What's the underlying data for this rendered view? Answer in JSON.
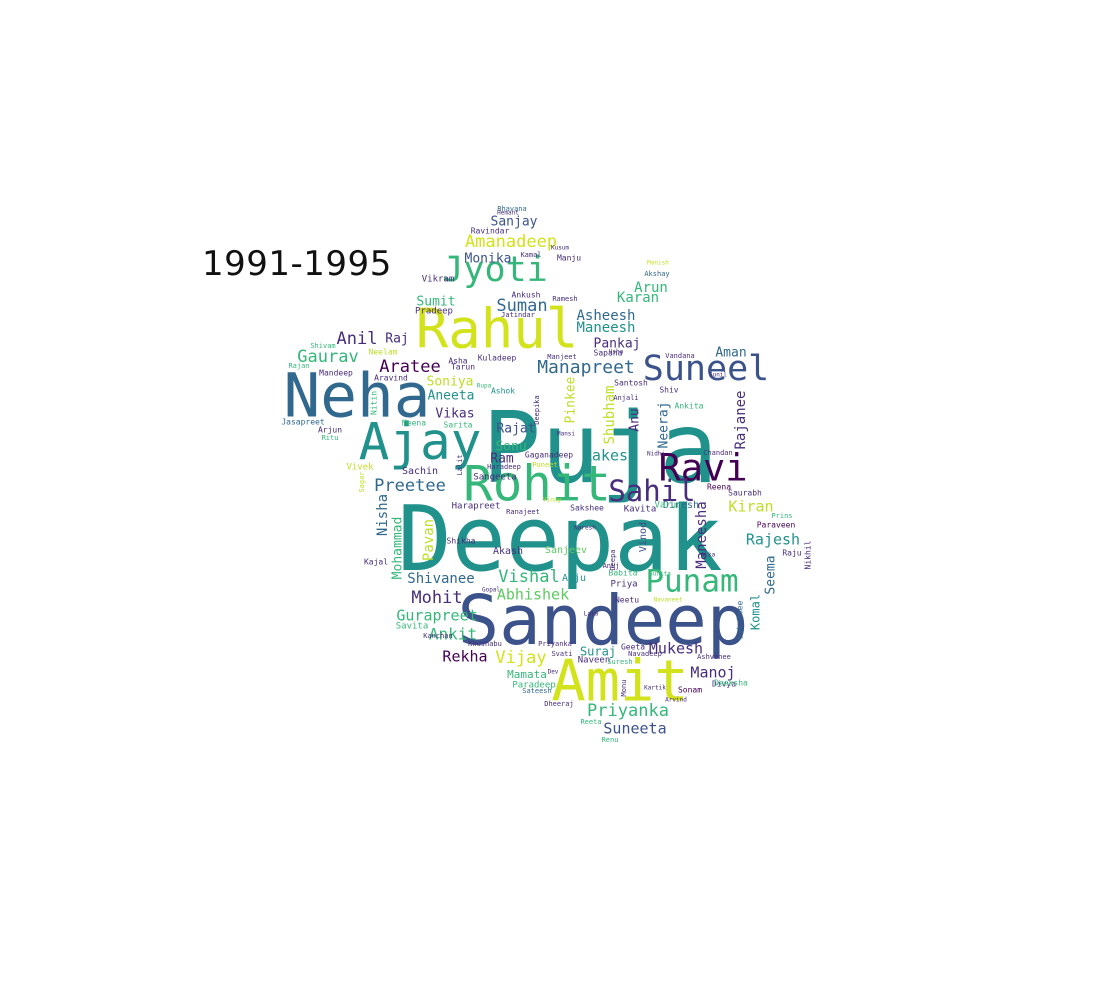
{
  "title": "1991-1995",
  "palette": {
    "purple": "#440154",
    "indigo": "#3b528b",
    "blue": "#31688e",
    "teal": "#21918c",
    "green": "#35b779",
    "lime": "#5ec962",
    "yellow": "#bddf26",
    "gold": "#d2e21b",
    "dark": "#472d7b"
  },
  "words": [
    {
      "text": "Puja",
      "weight": 100,
      "color": "teal"
    },
    {
      "text": "Deepak",
      "weight": 92,
      "color": "teal"
    },
    {
      "text": "Sandeep",
      "weight": 70,
      "color": "indigo"
    },
    {
      "text": "Neha",
      "weight": 62,
      "color": "blue"
    },
    {
      "text": "Amit",
      "weight": 58,
      "color": "gold"
    },
    {
      "text": "Rahul",
      "weight": 55,
      "color": "gold"
    },
    {
      "text": "Ajay",
      "weight": 52,
      "color": "teal"
    },
    {
      "text": "Rohit",
      "weight": 50,
      "color": "green"
    },
    {
      "text": "Ravi",
      "weight": 38,
      "color": "purple"
    },
    {
      "text": "Suneel",
      "weight": 36,
      "color": "indigo"
    },
    {
      "text": "Jyoti",
      "weight": 36,
      "color": "green"
    },
    {
      "text": "Punam",
      "weight": 32,
      "color": "green"
    },
    {
      "text": "Sahil",
      "weight": 30,
      "color": "dark"
    },
    {
      "text": "Manapreet",
      "weight": 18,
      "color": "blue"
    },
    {
      "text": "Amanadeep",
      "weight": 17,
      "color": "gold"
    },
    {
      "text": "Vishal",
      "weight": 17,
      "color": "green"
    },
    {
      "text": "Priyanka",
      "weight": 17,
      "color": "green"
    },
    {
      "text": "Abhishek",
      "weight": 15,
      "color": "lime"
    },
    {
      "text": "Mohit",
      "weight": 17,
      "color": "dark"
    },
    {
      "text": "Preetee",
      "weight": 17,
      "color": "blue"
    },
    {
      "text": "Gaurav",
      "weight": 17,
      "color": "green"
    },
    {
      "text": "Aratee",
      "weight": 17,
      "color": "purple"
    },
    {
      "text": "Suman",
      "weight": 17,
      "color": "blue"
    },
    {
      "text": "Anil",
      "weight": 17,
      "color": "dark"
    },
    {
      "text": "Vijay",
      "weight": 17,
      "color": "gold"
    },
    {
      "text": "Ankit",
      "weight": 16,
      "color": "green"
    },
    {
      "text": "Rakesh",
      "weight": 15,
      "color": "teal"
    },
    {
      "text": "Rajesh",
      "weight": 15,
      "color": "teal"
    },
    {
      "text": "Kiran",
      "weight": 15,
      "color": "yellow"
    },
    {
      "text": "Manoj",
      "weight": 15,
      "color": "dark"
    },
    {
      "text": "Rekha",
      "weight": 15,
      "color": "purple"
    },
    {
      "text": "Mukesh",
      "weight": 15,
      "color": "dark"
    },
    {
      "text": "Suneeta",
      "weight": 15,
      "color": "indigo"
    },
    {
      "text": "Gurapreet",
      "weight": 15,
      "color": "green"
    },
    {
      "text": "Shivanee",
      "weight": 14,
      "color": "blue"
    },
    {
      "text": "Shubham",
      "weight": 14,
      "color": "yellow"
    },
    {
      "text": "Maneesha",
      "weight": 14,
      "color": "dark"
    },
    {
      "text": "Rajanee",
      "weight": 14,
      "color": "dark"
    },
    {
      "text": "Nisha",
      "weight": 14,
      "color": "blue"
    },
    {
      "text": "Pavan",
      "weight": 14,
      "color": "yellow"
    },
    {
      "text": "Mohammad",
      "weight": 13,
      "color": "green"
    },
    {
      "text": "Pinkee",
      "weight": 13,
      "color": "yellow"
    },
    {
      "text": "Karan",
      "weight": 14,
      "color": "green"
    },
    {
      "text": "Arun",
      "weight": 14,
      "color": "green"
    },
    {
      "text": "Asheesh",
      "weight": 14,
      "color": "blue"
    },
    {
      "text": "Maneesh",
      "weight": 14,
      "color": "teal"
    },
    {
      "text": "Pankaj",
      "weight": 13,
      "color": "dark"
    },
    {
      "text": "Aman",
      "weight": 13,
      "color": "blue"
    },
    {
      "text": "Monika",
      "weight": 13,
      "color": "indigo"
    },
    {
      "text": "Sanjay",
      "weight": 13,
      "color": "indigo"
    },
    {
      "text": "Raj",
      "weight": 13,
      "color": "dark"
    },
    {
      "text": "Sumit",
      "weight": 13,
      "color": "green"
    },
    {
      "text": "Soniya",
      "weight": 13,
      "color": "yellow"
    },
    {
      "text": "Aneeta",
      "weight": 13,
      "color": "teal"
    },
    {
      "text": "Vikas",
      "weight": 13,
      "color": "dark"
    },
    {
      "text": "Rajat",
      "weight": 13,
      "color": "indigo"
    },
    {
      "text": "Sonu",
      "weight": 13,
      "color": "green"
    },
    {
      "text": "Ram",
      "weight": 13,
      "color": "dark"
    },
    {
      "text": "Neeraj",
      "weight": 13,
      "color": "blue"
    },
    {
      "text": "Anu",
      "weight": 13,
      "color": "dark"
    },
    {
      "text": "Seema",
      "weight": 13,
      "color": "blue"
    },
    {
      "text": "Komal",
      "weight": 12,
      "color": "teal"
    },
    {
      "text": "Suraj",
      "weight": 12,
      "color": "teal"
    },
    {
      "text": "Sachin",
      "weight": 10,
      "color": "dark"
    },
    {
      "text": "Akash",
      "weight": 10,
      "color": "dark"
    },
    {
      "text": "Sanjeev",
      "weight": 10,
      "color": "lime"
    },
    {
      "text": "Anju",
      "weight": 10,
      "color": "teal"
    },
    {
      "text": "Mamata",
      "weight": 11,
      "color": "green"
    },
    {
      "text": "Paradeep",
      "weight": 9,
      "color": "green"
    },
    {
      "text": "Naveen",
      "weight": 9,
      "color": "dark"
    },
    {
      "text": "Dinesh",
      "weight": 10,
      "color": "blue"
    },
    {
      "text": "Kavita",
      "weight": 9,
      "color": "dark"
    },
    {
      "text": "Vinod",
      "weight": 10,
      "color": "indigo"
    },
    {
      "text": "Varun",
      "weight": 9,
      "color": "green"
    },
    {
      "text": "Priya",
      "weight": 9,
      "color": "dark"
    },
    {
      "text": "Babita",
      "weight": 8,
      "color": "green"
    },
    {
      "text": "Neetu",
      "weight": 8,
      "color": "dark"
    },
    {
      "text": "Reena",
      "weight": 8,
      "color": "purple"
    },
    {
      "text": "Saurabh",
      "weight": 8,
      "color": "dark"
    },
    {
      "text": "Paraveen",
      "weight": 8,
      "color": "purple"
    },
    {
      "text": "Raju",
      "weight": 8,
      "color": "dark"
    },
    {
      "text": "Nikhil",
      "weight": 8,
      "color": "dark"
    },
    {
      "text": "Lakshmee",
      "weight": 8,
      "color": "blue"
    },
    {
      "text": "Divya",
      "weight": 8,
      "color": "dark"
    },
    {
      "text": "Deeksha",
      "weight": 8,
      "color": "green"
    },
    {
      "text": "Sonam",
      "weight": 8,
      "color": "purple"
    },
    {
      "text": "Geeta",
      "weight": 8,
      "color": "dark"
    },
    {
      "text": "Suresh",
      "weight": 7,
      "color": "green"
    },
    {
      "text": "Sateesh",
      "weight": 7,
      "color": "blue"
    },
    {
      "text": "Dheeraj",
      "weight": 7,
      "color": "dark"
    },
    {
      "text": "Reeta",
      "weight": 7,
      "color": "green"
    },
    {
      "text": "Renu",
      "weight": 7,
      "color": "green"
    },
    {
      "text": "Savita",
      "weight": 9,
      "color": "green"
    },
    {
      "text": "Shikha",
      "weight": 8,
      "color": "dark"
    },
    {
      "text": "Kajal",
      "weight": 8,
      "color": "dark"
    },
    {
      "text": "Harapreet",
      "weight": 9,
      "color": "dark"
    },
    {
      "text": "Sangeeta",
      "weight": 9,
      "color": "dark"
    },
    {
      "text": "Sakshee",
      "weight": 8,
      "color": "dark"
    },
    {
      "text": "Ranajeet",
      "weight": 7,
      "color": "dark"
    },
    {
      "text": "Gaganadeep",
      "weight": 8,
      "color": "dark"
    },
    {
      "text": "Haradeep",
      "weight": 7,
      "color": "dark"
    },
    {
      "text": "Vivek",
      "weight": 9,
      "color": "yellow"
    },
    {
      "text": "Sagar",
      "weight": 7,
      "color": "yellow"
    },
    {
      "text": "Jasapreet",
      "weight": 8,
      "color": "blue"
    },
    {
      "text": "Arjun",
      "weight": 8,
      "color": "dark"
    },
    {
      "text": "Ritu",
      "weight": 7,
      "color": "green"
    },
    {
      "text": "Mandeep",
      "weight": 8,
      "color": "dark"
    },
    {
      "text": "Aravind",
      "weight": 8,
      "color": "dark"
    },
    {
      "text": "Rajan",
      "weight": 7,
      "color": "green"
    },
    {
      "text": "Shivam",
      "weight": 7,
      "color": "green"
    },
    {
      "text": "Neelam",
      "weight": 8,
      "color": "yellow"
    },
    {
      "text": "Asha",
      "weight": 8,
      "color": "dark"
    },
    {
      "text": "Tarun",
      "weight": 8,
      "color": "dark"
    },
    {
      "text": "Kuladeep",
      "weight": 8,
      "color": "dark"
    },
    {
      "text": "Manjeet",
      "weight": 7,
      "color": "dark"
    },
    {
      "text": "Sapana",
      "weight": 8,
      "color": "dark"
    },
    {
      "text": "Vandana",
      "weight": 7,
      "color": "dark"
    },
    {
      "text": "Santosh",
      "weight": 8,
      "color": "dark"
    },
    {
      "text": "Anjali",
      "weight": 7,
      "color": "dark"
    },
    {
      "text": "Shiv",
      "weight": 8,
      "color": "dark"
    },
    {
      "text": "Ankita",
      "weight": 8,
      "color": "green"
    },
    {
      "text": "Chandan",
      "weight": 7,
      "color": "dark"
    },
    {
      "text": "Pradeep",
      "weight": 9,
      "color": "dark"
    },
    {
      "text": "Ankush",
      "weight": 8,
      "color": "dark"
    },
    {
      "text": "Vikram",
      "weight": 9,
      "color": "dark"
    },
    {
      "text": "Ravindar",
      "weight": 8,
      "color": "dark"
    },
    {
      "text": "Kamal",
      "weight": 7,
      "color": "dark"
    },
    {
      "text": "Manju",
      "weight": 8,
      "color": "dark"
    },
    {
      "text": "Bhavana",
      "weight": 7,
      "color": "blue"
    },
    {
      "text": "Akshay",
      "weight": 7,
      "color": "blue"
    },
    {
      "text": "Ramesh",
      "weight": 7,
      "color": "dark"
    },
    {
      "text": "Jatindar",
      "weight": 7,
      "color": "dark"
    },
    {
      "text": "Ashok",
      "weight": 8,
      "color": "teal"
    },
    {
      "text": "Sarita",
      "weight": 8,
      "color": "green"
    },
    {
      "text": "Meena",
      "weight": 8,
      "color": "green"
    },
    {
      "text": "Nitin",
      "weight": 8,
      "color": "green"
    },
    {
      "text": "Lalit",
      "weight": 7,
      "color": "dark"
    },
    {
      "text": "Deepika",
      "weight": 7,
      "color": "dark"
    },
    {
      "text": "Puneet",
      "weight": 7,
      "color": "yellow"
    },
    {
      "text": "Deepa",
      "weight": 7,
      "color": "dark"
    },
    {
      "text": "Anuj",
      "weight": 7,
      "color": "dark"
    },
    {
      "text": "Navadeep",
      "weight": 7,
      "color": "dark"
    },
    {
      "text": "Ashvanee",
      "weight": 7,
      "color": "dark"
    },
    {
      "text": "Prins",
      "weight": 7,
      "color": "green"
    },
    {
      "text": "Kanchan",
      "weight": 7,
      "color": "dark"
    },
    {
      "text": "Khushabu",
      "weight": 7,
      "color": "dark"
    },
    {
      "text": "Priyanka",
      "weight": 7,
      "color": "dark"
    },
    {
      "text": "Svati",
      "weight": 7,
      "color": "dark"
    },
    {
      "text": "Monu",
      "weight": 7,
      "color": "dark"
    },
    {
      "text": "Kartik",
      "weight": 6,
      "color": "dark"
    },
    {
      "text": "Navaneet",
      "weight": 6,
      "color": "yellow"
    },
    {
      "text": "Usha",
      "weight": 6,
      "color": "dark"
    },
    {
      "text": "Nidhi",
      "weight": 6,
      "color": "dark"
    },
    {
      "text": "Arvind",
      "weight": 6,
      "color": "dark"
    },
    {
      "text": "Vinay",
      "weight": 6,
      "color": "yellow"
    },
    {
      "text": "Naresh",
      "weight": 6,
      "color": "dark"
    },
    {
      "text": "Gopal",
      "weight": 6,
      "color": "dark"
    },
    {
      "text": "Sunita",
      "weight": 6,
      "color": "green"
    },
    {
      "text": "Alka",
      "weight": 6,
      "color": "dark"
    },
    {
      "text": "Manish",
      "weight": 6,
      "color": "yellow"
    },
    {
      "text": "Hemant",
      "weight": 6,
      "color": "dark"
    },
    {
      "text": "Kusum",
      "weight": 6,
      "color": "dark"
    },
    {
      "text": "Lata",
      "weight": 6,
      "color": "dark"
    },
    {
      "text": "Rupa",
      "weight": 6,
      "color": "green"
    },
    {
      "text": "Sunil",
      "weight": 6,
      "color": "dark"
    },
    {
      "text": "Dev",
      "weight": 6,
      "color": "dark"
    },
    {
      "text": "Mansi",
      "weight": 6,
      "color": "dark"
    }
  ]
}
